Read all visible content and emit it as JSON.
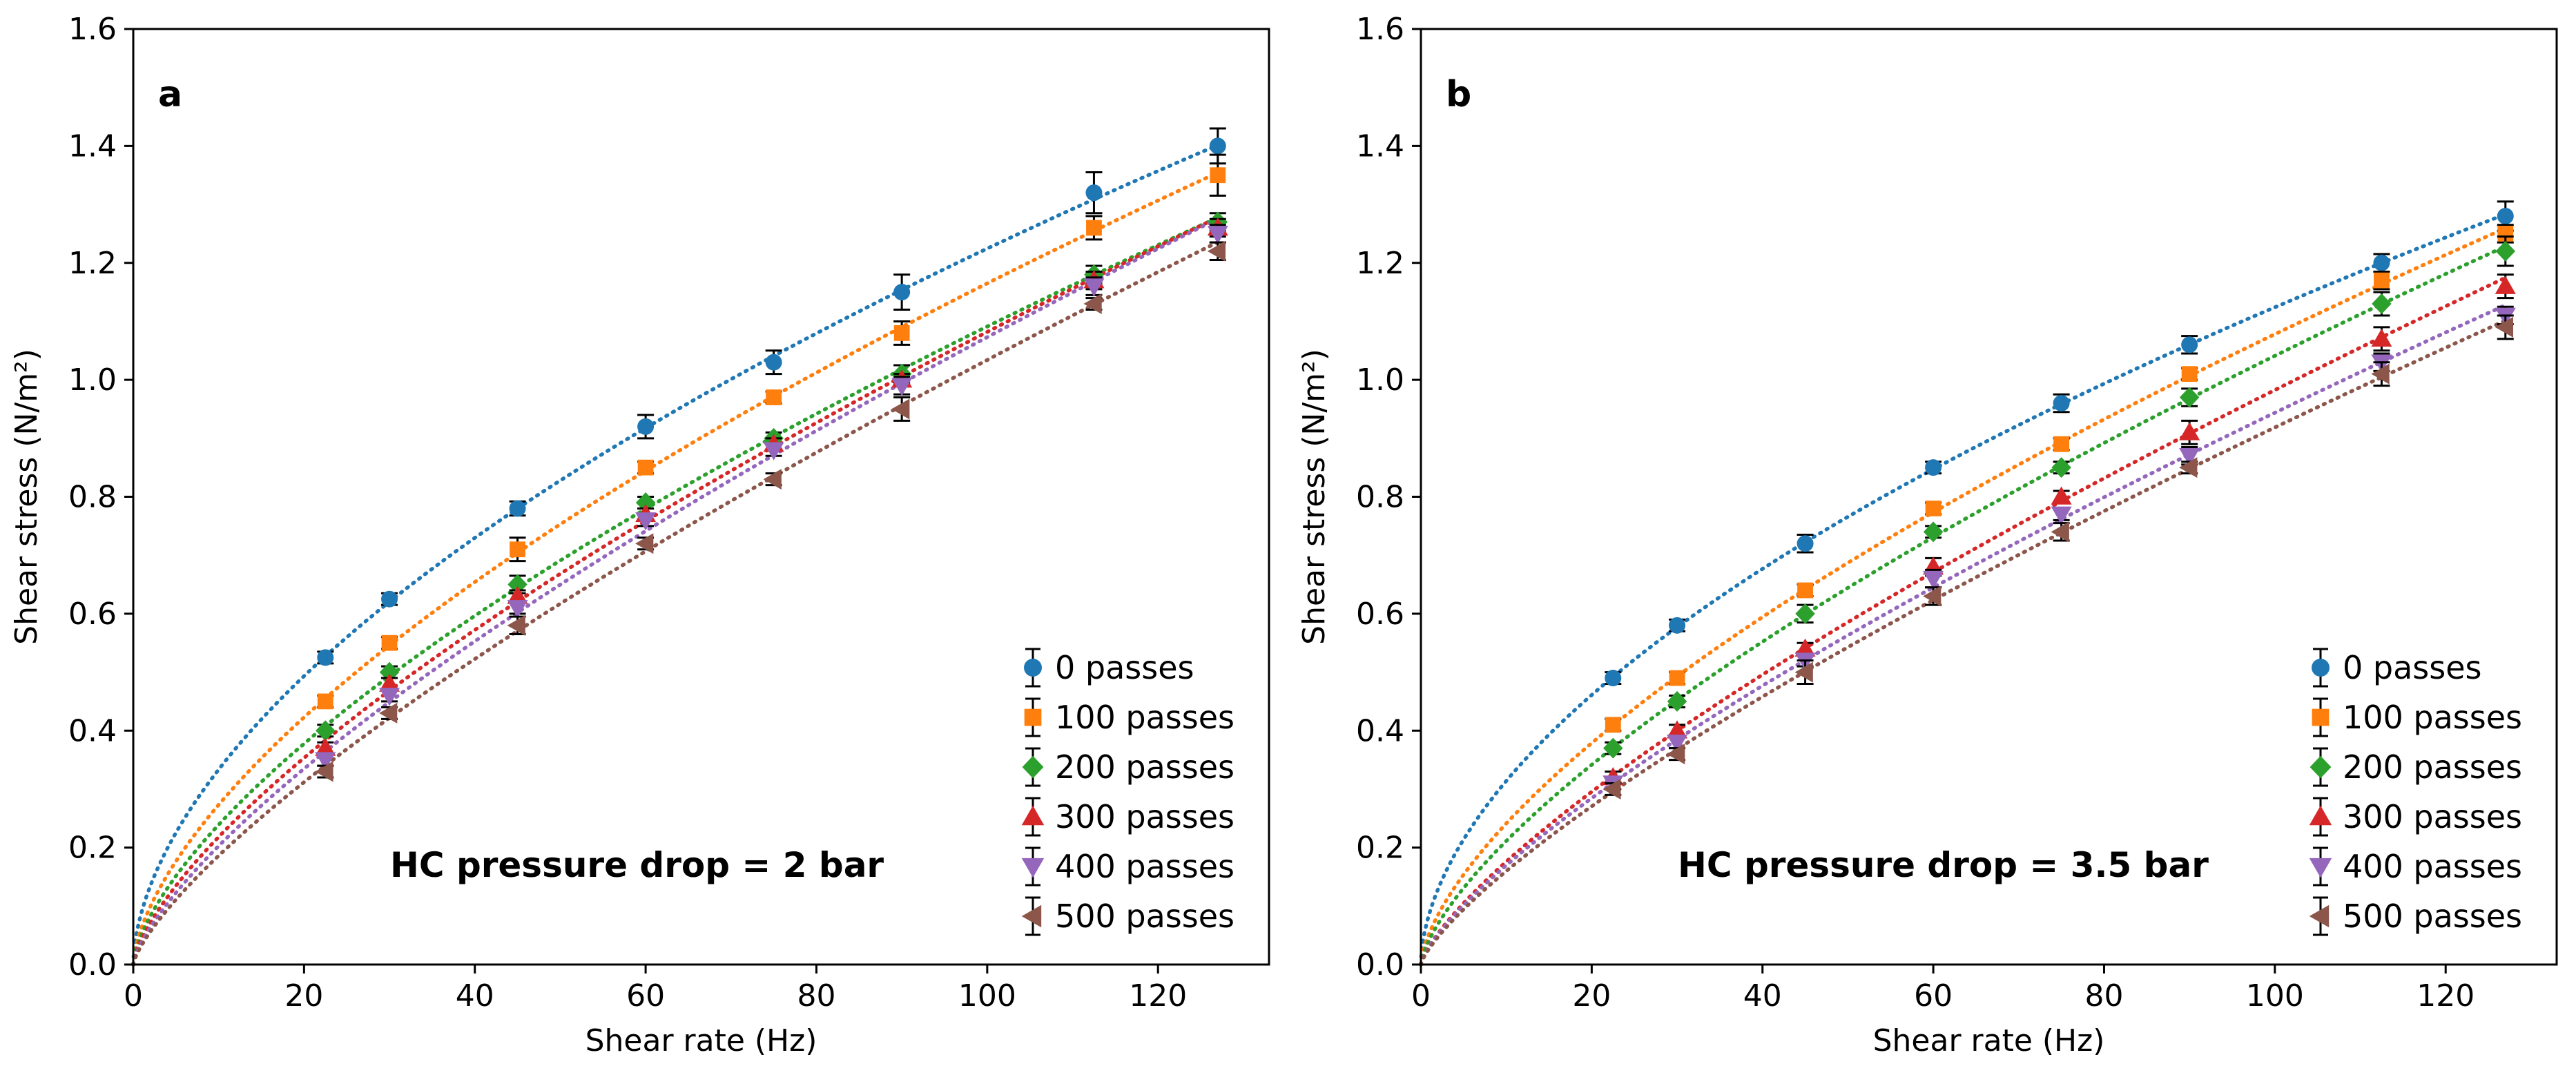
{
  "chart_data": [
    {
      "type": "scatter",
      "panel_label": "a",
      "annotation": "HC pressure drop = 2 bar",
      "xlabel": "Shear rate (Hz)",
      "ylabel": "Shear stress (N/m²)",
      "xlim": [
        0,
        133
      ],
      "ylim": [
        0,
        1.6
      ],
      "xticks": [
        "0",
        "20",
        "40",
        "60",
        "80",
        "100",
        "120"
      ],
      "yticks": [
        "0.0",
        "0.2",
        "0.4",
        "0.6",
        "0.8",
        "1.0",
        "1.2",
        "1.4",
        "1.6"
      ],
      "x": [
        22.5,
        30,
        45,
        60,
        75,
        90,
        112.5,
        127
      ],
      "legend_position": "lower right",
      "series": [
        {
          "name": "0 passes",
          "color": "#1f77b4",
          "marker": "circle",
          "values": [
            0.525,
            0.625,
            0.78,
            0.92,
            1.03,
            1.15,
            1.32,
            1.4
          ],
          "errors": [
            0.01,
            0.01,
            0.012,
            0.02,
            0.02,
            0.03,
            0.035,
            0.03
          ]
        },
        {
          "name": "100 passes",
          "color": "#ff7f0e",
          "marker": "square",
          "values": [
            0.45,
            0.55,
            0.71,
            0.85,
            0.97,
            1.08,
            1.26,
            1.35
          ],
          "errors": [
            0.01,
            0.01,
            0.02,
            0.01,
            0.01,
            0.02,
            0.02,
            0.035
          ]
        },
        {
          "name": "200 passes",
          "color": "#2ca02c",
          "marker": "diamond",
          "values": [
            0.4,
            0.5,
            0.65,
            0.79,
            0.9,
            1.01,
            1.18,
            1.27
          ],
          "errors": [
            0.01,
            0.01,
            0.015,
            0.01,
            0.01,
            0.015,
            0.015,
            0.015
          ]
        },
        {
          "name": "300 passes",
          "color": "#d62728",
          "marker": "triangle-up",
          "values": [
            0.37,
            0.48,
            0.63,
            0.77,
            0.89,
            1.0,
            1.17,
            1.26
          ],
          "errors": [
            0.01,
            0.01,
            0.01,
            0.01,
            0.01,
            0.01,
            0.015,
            0.015
          ]
        },
        {
          "name": "400 passes",
          "color": "#9467bd",
          "marker": "triangle-down",
          "values": [
            0.35,
            0.46,
            0.61,
            0.76,
            0.88,
            0.99,
            1.16,
            1.25
          ],
          "errors": [
            0.01,
            0.01,
            0.01,
            0.01,
            0.01,
            0.015,
            0.015,
            0.015
          ]
        },
        {
          "name": "500 passes",
          "color": "#8c564b",
          "marker": "triangle-left",
          "values": [
            0.33,
            0.43,
            0.58,
            0.72,
            0.83,
            0.95,
            1.13,
            1.22
          ],
          "errors": [
            0.01,
            0.01,
            0.015,
            0.01,
            0.01,
            0.02,
            0.01,
            0.015
          ]
        }
      ]
    },
    {
      "type": "scatter",
      "panel_label": "b",
      "annotation": "HC pressure drop = 3.5 bar",
      "xlabel": "Shear rate (Hz)",
      "ylabel": "Shear stress (N/m²)",
      "xlim": [
        0,
        133
      ],
      "ylim": [
        0,
        1.6
      ],
      "xticks": [
        "0",
        "20",
        "40",
        "60",
        "80",
        "100",
        "120"
      ],
      "yticks": [
        "0.0",
        "0.2",
        "0.4",
        "0.6",
        "0.8",
        "1.0",
        "1.2",
        "1.4",
        "1.6"
      ],
      "x": [
        22.5,
        30,
        45,
        60,
        75,
        90,
        112.5,
        127
      ],
      "legend_position": "lower right",
      "series": [
        {
          "name": "0 passes",
          "color": "#1f77b4",
          "marker": "circle",
          "values": [
            0.49,
            0.58,
            0.72,
            0.85,
            0.96,
            1.06,
            1.2,
            1.28
          ],
          "errors": [
            0.01,
            0.01,
            0.015,
            0.01,
            0.015,
            0.015,
            0.015,
            0.025
          ]
        },
        {
          "name": "100 passes",
          "color": "#ff7f0e",
          "marker": "square",
          "values": [
            0.41,
            0.49,
            0.64,
            0.78,
            0.89,
            1.01,
            1.17,
            1.25
          ],
          "errors": [
            0.01,
            0.01,
            0.01,
            0.01,
            0.01,
            0.01,
            0.015,
            0.015
          ]
        },
        {
          "name": "200 passes",
          "color": "#2ca02c",
          "marker": "diamond",
          "values": [
            0.37,
            0.45,
            0.6,
            0.74,
            0.85,
            0.97,
            1.13,
            1.22
          ],
          "errors": [
            0.01,
            0.01,
            0.015,
            0.01,
            0.01,
            0.015,
            0.02,
            0.025
          ]
        },
        {
          "name": "300 passes",
          "color": "#d62728",
          "marker": "triangle-up",
          "values": [
            0.32,
            0.4,
            0.54,
            0.68,
            0.8,
            0.91,
            1.07,
            1.16
          ],
          "errors": [
            0.01,
            0.01,
            0.01,
            0.015,
            0.01,
            0.02,
            0.02,
            0.02
          ]
        },
        {
          "name": "400 passes",
          "color": "#9467bd",
          "marker": "triangle-down",
          "values": [
            0.31,
            0.38,
            0.52,
            0.66,
            0.77,
            0.87,
            1.03,
            1.11
          ],
          "errors": [
            0.01,
            0.01,
            0.01,
            0.015,
            0.01,
            0.015,
            0.015,
            0.015
          ]
        },
        {
          "name": "500 passes",
          "color": "#8c564b",
          "marker": "triangle-left",
          "values": [
            0.3,
            0.36,
            0.5,
            0.63,
            0.74,
            0.85,
            1.01,
            1.09
          ],
          "errors": [
            0.01,
            0.01,
            0.02,
            0.015,
            0.015,
            0.01,
            0.02,
            0.02
          ]
        }
      ]
    }
  ]
}
